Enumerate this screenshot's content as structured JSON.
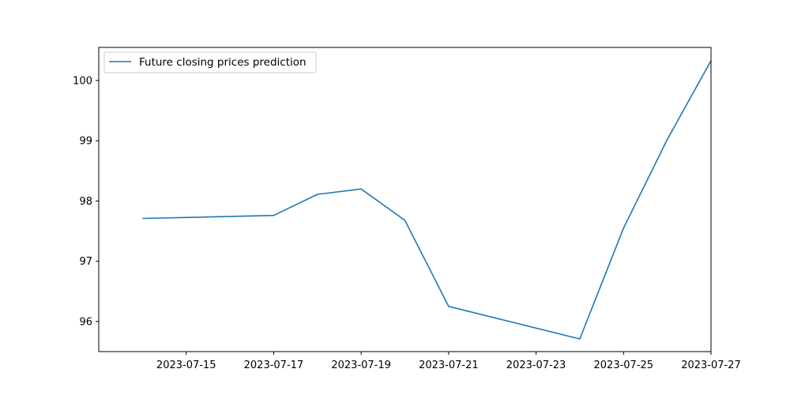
{
  "chart_data": {
    "type": "line",
    "title": "",
    "xlabel": "",
    "ylabel": "",
    "x": [
      "2023-07-14",
      "2023-07-17",
      "2023-07-18",
      "2023-07-19",
      "2023-07-20",
      "2023-07-21",
      "2023-07-24",
      "2023-07-25",
      "2023-07-26",
      "2023-07-27"
    ],
    "series": [
      {
        "name": "Future closing prices prediction",
        "color": "#1f77b4",
        "values": [
          97.71,
          97.76,
          98.11,
          98.2,
          97.68,
          96.25,
          95.71,
          97.55,
          99.02,
          100.33
        ]
      }
    ],
    "xlim": [
      "2023-07-13",
      "2023-07-27"
    ],
    "ylim": [
      95.5,
      100.55
    ],
    "xticks": [
      "2023-07-15",
      "2023-07-17",
      "2023-07-19",
      "2023-07-21",
      "2023-07-23",
      "2023-07-25",
      "2023-07-27"
    ],
    "yticks": [
      96,
      97,
      98,
      99,
      100
    ],
    "grid": false,
    "legend_position": "top-left"
  }
}
